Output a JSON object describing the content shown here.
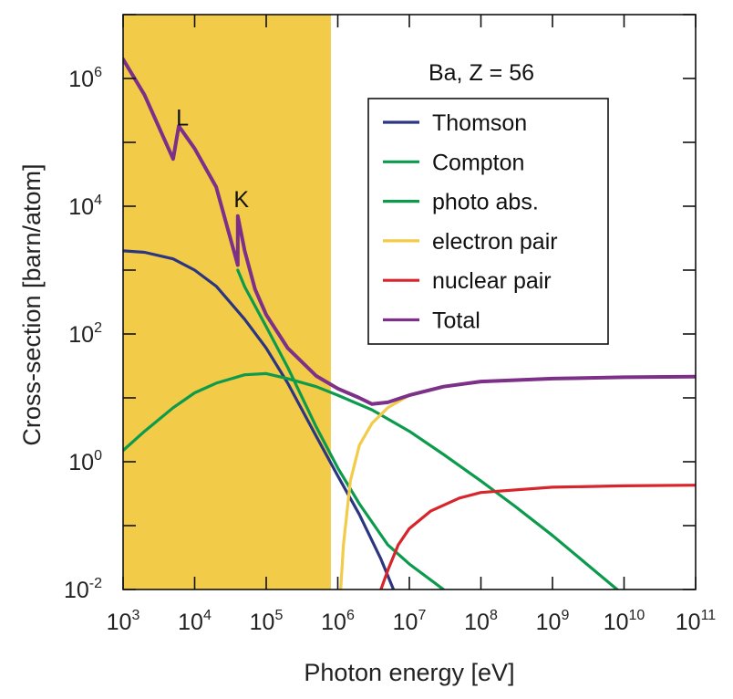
{
  "chart_data": {
    "type": "line",
    "title": "Ba, Z = 56",
    "xlabel": "Photon energy [eV]",
    "ylabel": "Cross-section [barn/atom]",
    "xscale": "log",
    "yscale": "log",
    "xlim": [
      1000,
      100000000000
    ],
    "ylim": [
      0.01,
      10000000
    ],
    "x_tick_exponents": [
      "3",
      "4",
      "5",
      "6",
      "7",
      "8",
      "9",
      "10",
      "11"
    ],
    "y_tick_exponents": [
      "-2",
      "0",
      "2",
      "4",
      "6"
    ],
    "tick_base": "10",
    "grid": false,
    "legend_position": "top-right",
    "shaded_region": {
      "x": [
        1000,
        800000
      ],
      "color": "#f2cb48"
    },
    "annotations": [
      {
        "text": "L",
        "x": 6000,
        "y": 150000
      },
      {
        "text": "K",
        "x": 40000,
        "y": 8000
      }
    ],
    "series": [
      {
        "name": "Thomson",
        "color": "#2c3580",
        "x": [
          1000,
          2000,
          5000,
          10000,
          20000,
          50000,
          100000,
          200000,
          500000,
          1000000,
          2000000,
          4000000,
          6000000
        ],
        "y": [
          2000,
          1900,
          1500,
          1000,
          560,
          170,
          60,
          17,
          2.5,
          0.6,
          0.15,
          0.03,
          0.01
        ]
      },
      {
        "name": "Compton",
        "color": "#0c9a4c",
        "x": [
          1000,
          2000,
          5000,
          10000,
          20000,
          50000,
          100000,
          200000,
          500000,
          1000000,
          3000000,
          10000000,
          30000000,
          100000000,
          300000000,
          1000000000,
          3000000000,
          8000000000
        ],
        "y": [
          1.5,
          3,
          7,
          12,
          17,
          23,
          24,
          20,
          15,
          11,
          6.5,
          3,
          1.3,
          0.5,
          0.2,
          0.07,
          0.025,
          0.01
        ]
      },
      {
        "name": "photo abs.",
        "color": "#0c9a4c",
        "x": [
          40000,
          50000,
          100000,
          200000,
          500000,
          1000000,
          2000000,
          5000000,
          10000000,
          30000000
        ],
        "y": [
          1000,
          550,
          130,
          30,
          3.5,
          0.8,
          0.22,
          0.05,
          0.025,
          0.01
        ]
      },
      {
        "name": "electron pair",
        "color": "#f2cb48",
        "x": [
          1100000,
          1200000,
          1500000,
          2000000,
          3000000,
          5000000,
          10000000,
          30000000,
          100000000,
          1000000000,
          10000000000,
          100000000000
        ],
        "y": [
          0.01,
          0.05,
          0.5,
          1.8,
          4,
          7,
          11,
          15,
          18,
          20,
          21,
          21.5
        ]
      },
      {
        "name": "nuclear pair",
        "color": "#d6262b",
        "x": [
          4000000,
          5000000,
          7000000,
          10000000,
          20000000,
          50000000,
          100000000,
          1000000000,
          10000000000,
          100000000000
        ],
        "y": [
          0.01,
          0.02,
          0.05,
          0.09,
          0.17,
          0.27,
          0.33,
          0.4,
          0.42,
          0.43
        ]
      },
      {
        "name": "Total",
        "color": "#7d3088",
        "x": [
          1000,
          2000,
          5000,
          5000,
          6000,
          10000,
          20000,
          40000,
          40000,
          50000,
          70000,
          100000,
          200000,
          500000,
          1000000,
          2000000,
          3000000,
          5000000,
          10000000,
          30000000,
          100000000,
          1000000000,
          10000000000,
          100000000000
        ],
        "y": [
          2000000,
          550000,
          55000,
          55000,
          180000,
          80000,
          20000,
          1200,
          7000,
          2000,
          500,
          200,
          60,
          22,
          14,
          10,
          8,
          8.5,
          11,
          15,
          18,
          20,
          21,
          21.5
        ]
      }
    ]
  }
}
